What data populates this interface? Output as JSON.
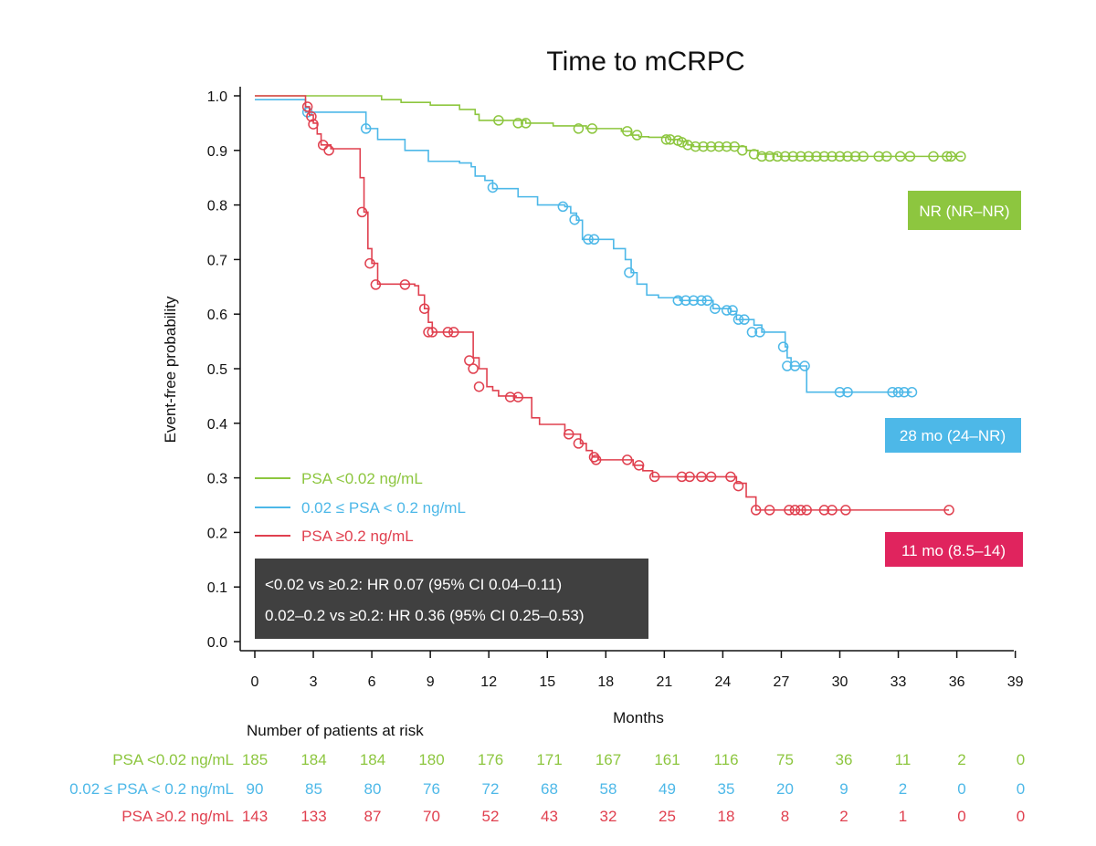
{
  "chart_data": {
    "type": "line",
    "subtype": "kaplan-meier",
    "title": "Time to mCRPC",
    "xlabel": "Months",
    "ylabel": "Event-free probability",
    "xlim": [
      0,
      39
    ],
    "ylim": [
      0,
      1
    ],
    "xticks": [
      "0",
      "3",
      "6",
      "9",
      "12",
      "15",
      "18",
      "21",
      "24",
      "27",
      "30",
      "33",
      "36",
      "39"
    ],
    "yticks": [
      "0.0",
      "0.1",
      "0.2",
      "0.3",
      "0.4",
      "0.5",
      "0.6",
      "0.7",
      "0.8",
      "0.9",
      "1.0"
    ],
    "grid": false,
    "legend_position": "lower-left",
    "series": [
      {
        "name": "PSA <0.02 ng/mL",
        "color": "#8dc63f",
        "steps": [
          [
            0,
            1.0
          ],
          [
            6.5,
            0.993
          ],
          [
            7.5,
            0.988
          ],
          [
            9,
            0.983
          ],
          [
            10.5,
            0.975
          ],
          [
            11.3,
            0.966
          ],
          [
            11.5,
            0.955
          ],
          [
            13.9,
            0.95
          ],
          [
            15.3,
            0.945
          ],
          [
            17,
            0.94
          ],
          [
            18.8,
            0.935
          ],
          [
            19.3,
            0.928
          ],
          [
            19.7,
            0.925
          ],
          [
            20.2,
            0.924
          ],
          [
            21.2,
            0.92
          ],
          [
            21.8,
            0.917
          ],
          [
            22.2,
            0.91
          ],
          [
            22.5,
            0.907
          ],
          [
            25.2,
            0.9
          ],
          [
            25.8,
            0.893
          ],
          [
            26.8,
            0.889
          ],
          [
            36.3,
            0.889
          ]
        ],
        "censors": [
          [
            12.5,
            0.955
          ],
          [
            13.5,
            0.95
          ],
          [
            13.9,
            0.95
          ],
          [
            16.6,
            0.94
          ],
          [
            17.3,
            0.94
          ],
          [
            19.1,
            0.935
          ],
          [
            19.6,
            0.928
          ],
          [
            21.1,
            0.92
          ],
          [
            21.3,
            0.92
          ],
          [
            21.7,
            0.918
          ],
          [
            21.9,
            0.915
          ],
          [
            22.2,
            0.91
          ],
          [
            22.6,
            0.907
          ],
          [
            23,
            0.907
          ],
          [
            23.4,
            0.907
          ],
          [
            23.8,
            0.907
          ],
          [
            24.2,
            0.907
          ],
          [
            24.6,
            0.907
          ],
          [
            25,
            0.9
          ],
          [
            25.6,
            0.893
          ],
          [
            26,
            0.889
          ],
          [
            26.4,
            0.889
          ],
          [
            26.8,
            0.889
          ],
          [
            27.2,
            0.889
          ],
          [
            27.6,
            0.889
          ],
          [
            28,
            0.889
          ],
          [
            28.4,
            0.889
          ],
          [
            28.8,
            0.889
          ],
          [
            29.2,
            0.889
          ],
          [
            29.6,
            0.889
          ],
          [
            30,
            0.889
          ],
          [
            30.4,
            0.889
          ],
          [
            30.8,
            0.889
          ],
          [
            31.2,
            0.889
          ],
          [
            32,
            0.889
          ],
          [
            32.4,
            0.889
          ],
          [
            33.1,
            0.889
          ],
          [
            33.6,
            0.889
          ],
          [
            34.8,
            0.889
          ],
          [
            35.5,
            0.889
          ],
          [
            35.7,
            0.889
          ],
          [
            36.2,
            0.889
          ]
        ]
      },
      {
        "name": "0.02 ≤ PSA < 0.2 ng/mL",
        "color": "#4db8e8",
        "steps": [
          [
            0,
            0.993
          ],
          [
            2.6,
            0.97
          ],
          [
            5.7,
            0.94
          ],
          [
            6.3,
            0.92
          ],
          [
            7.7,
            0.9
          ],
          [
            8.9,
            0.88
          ],
          [
            10.5,
            0.877
          ],
          [
            11.1,
            0.87
          ],
          [
            11.3,
            0.853
          ],
          [
            11.8,
            0.845
          ],
          [
            12.2,
            0.83
          ],
          [
            13.5,
            0.815
          ],
          [
            14.5,
            0.8
          ],
          [
            15.9,
            0.797
          ],
          [
            16.2,
            0.785
          ],
          [
            16.5,
            0.772
          ],
          [
            16.8,
            0.737
          ],
          [
            18.4,
            0.72
          ],
          [
            19,
            0.7
          ],
          [
            19.3,
            0.676
          ],
          [
            19.6,
            0.655
          ],
          [
            20.1,
            0.635
          ],
          [
            20.7,
            0.63
          ],
          [
            21.8,
            0.625
          ],
          [
            23.5,
            0.61
          ],
          [
            24.4,
            0.605
          ],
          [
            24.7,
            0.59
          ],
          [
            25.6,
            0.58
          ],
          [
            26,
            0.567
          ],
          [
            27.2,
            0.54
          ],
          [
            27.3,
            0.52
          ],
          [
            27.5,
            0.505
          ],
          [
            28.3,
            0.457
          ],
          [
            33.7,
            0.457
          ]
        ],
        "censors": [
          [
            2.7,
            0.97
          ],
          [
            5.7,
            0.94
          ],
          [
            12.2,
            0.832
          ],
          [
            15.8,
            0.797
          ],
          [
            16.4,
            0.773
          ],
          [
            17.1,
            0.737
          ],
          [
            17.4,
            0.737
          ],
          [
            19.2,
            0.676
          ],
          [
            21.7,
            0.625
          ],
          [
            22.1,
            0.625
          ],
          [
            22.5,
            0.625
          ],
          [
            22.9,
            0.625
          ],
          [
            23.2,
            0.625
          ],
          [
            23.6,
            0.61
          ],
          [
            24.2,
            0.607
          ],
          [
            24.5,
            0.607
          ],
          [
            24.8,
            0.59
          ],
          [
            25.1,
            0.59
          ],
          [
            25.5,
            0.567
          ],
          [
            25.9,
            0.567
          ],
          [
            27.1,
            0.54
          ],
          [
            27.3,
            0.505
          ],
          [
            27.7,
            0.505
          ],
          [
            28.2,
            0.505
          ],
          [
            30,
            0.457
          ],
          [
            30.4,
            0.457
          ],
          [
            32.7,
            0.457
          ],
          [
            33,
            0.457
          ],
          [
            33.3,
            0.457
          ],
          [
            33.7,
            0.457
          ]
        ],
        "median": "28 mo (24–NR)"
      },
      {
        "name": "PSA ≥0.2 ng/mL",
        "color": "#e0404f",
        "steps": [
          [
            0,
            1.0
          ],
          [
            2.6,
            0.98
          ],
          [
            2.8,
            0.965
          ],
          [
            3,
            0.95
          ],
          [
            3.2,
            0.93
          ],
          [
            3.4,
            0.91
          ],
          [
            3.9,
            0.903
          ],
          [
            5.2,
            0.903
          ],
          [
            5.4,
            0.85
          ],
          [
            5.6,
            0.787
          ],
          [
            5.8,
            0.72
          ],
          [
            6,
            0.693
          ],
          [
            6.3,
            0.655
          ],
          [
            8.2,
            0.652
          ],
          [
            8.4,
            0.635
          ],
          [
            8.7,
            0.61
          ],
          [
            8.9,
            0.585
          ],
          [
            9.1,
            0.567
          ],
          [
            10.8,
            0.567
          ],
          [
            11.2,
            0.52
          ],
          [
            11.5,
            0.5
          ],
          [
            11.9,
            0.467
          ],
          [
            12.2,
            0.46
          ],
          [
            12.5,
            0.45
          ],
          [
            13.4,
            0.447
          ],
          [
            14.2,
            0.41
          ],
          [
            14.6,
            0.398
          ],
          [
            15.9,
            0.38
          ],
          [
            16.7,
            0.363
          ],
          [
            17,
            0.35
          ],
          [
            17.3,
            0.338
          ],
          [
            17.6,
            0.333
          ],
          [
            19.4,
            0.323
          ],
          [
            19.9,
            0.313
          ],
          [
            20.4,
            0.302
          ],
          [
            24.7,
            0.29
          ],
          [
            25.2,
            0.265
          ],
          [
            25.7,
            0.241
          ],
          [
            35.6,
            0.241
          ]
        ],
        "censors": [
          [
            2.7,
            0.98
          ],
          [
            2.9,
            0.962
          ],
          [
            3,
            0.948
          ],
          [
            3.5,
            0.91
          ],
          [
            3.8,
            0.9
          ],
          [
            5.5,
            0.787
          ],
          [
            5.9,
            0.693
          ],
          [
            6.2,
            0.654
          ],
          [
            7.7,
            0.654
          ],
          [
            8.7,
            0.61
          ],
          [
            8.9,
            0.567
          ],
          [
            9.1,
            0.567
          ],
          [
            9.9,
            0.567
          ],
          [
            10.2,
            0.567
          ],
          [
            11,
            0.515
          ],
          [
            11.2,
            0.5
          ],
          [
            11.5,
            0.467
          ],
          [
            13.1,
            0.448
          ],
          [
            13.5,
            0.448
          ],
          [
            16.1,
            0.38
          ],
          [
            16.6,
            0.363
          ],
          [
            17.4,
            0.338
          ],
          [
            17.5,
            0.333
          ],
          [
            19.1,
            0.333
          ],
          [
            19.7,
            0.323
          ],
          [
            20.5,
            0.302
          ],
          [
            21.9,
            0.302
          ],
          [
            22.3,
            0.302
          ],
          [
            22.9,
            0.302
          ],
          [
            23.4,
            0.302
          ],
          [
            24.4,
            0.302
          ],
          [
            24.8,
            0.285
          ],
          [
            25.7,
            0.241
          ],
          [
            26.4,
            0.241
          ],
          [
            27.4,
            0.241
          ],
          [
            27.7,
            0.241
          ],
          [
            28,
            0.241
          ],
          [
            28.3,
            0.241
          ],
          [
            29.2,
            0.241
          ],
          [
            29.6,
            0.241
          ],
          [
            30.3,
            0.241
          ],
          [
            35.6,
            0.241
          ]
        ],
        "median": "11 mo (8.5–14)"
      }
    ],
    "median_labels": [
      {
        "text": "NR (NR–NR)",
        "color": "#8dc63f"
      },
      {
        "text": "28 mo (24–NR)",
        "color": "#4db8e8"
      },
      {
        "text": "11 mo (8.5–14)",
        "color": "#e0245e"
      }
    ],
    "hazard_ratios": [
      "<0.02 vs ≥0.2: HR 0.07 (95% CI 0.04–0.11)",
      "0.02–0.2 vs ≥0.2: HR 0.36 (95% CI 0.25–0.53)"
    ],
    "risk_table": {
      "title": "Number of patients at risk",
      "rows": [
        {
          "label": "PSA <0.02 ng/mL",
          "color": "#8dc63f",
          "values": [
            "185",
            "184",
            "184",
            "180",
            "176",
            "171",
            "167",
            "161",
            "116",
            "75",
            "36",
            "11",
            "2",
            "0"
          ]
        },
        {
          "label": "0.02 ≤ PSA < 0.2 ng/mL",
          "color": "#4db8e8",
          "values": [
            "90",
            "85",
            "80",
            "76",
            "72",
            "68",
            "58",
            "49",
            "35",
            "20",
            "9",
            "2",
            "0",
            "0"
          ]
        },
        {
          "label": "PSA ≥0.2 ng/mL",
          "color": "#e0404f",
          "values": [
            "143",
            "133",
            "87",
            "70",
            "52",
            "43",
            "32",
            "25",
            "18",
            "8",
            "2",
            "1",
            "0",
            "0"
          ]
        }
      ]
    }
  }
}
